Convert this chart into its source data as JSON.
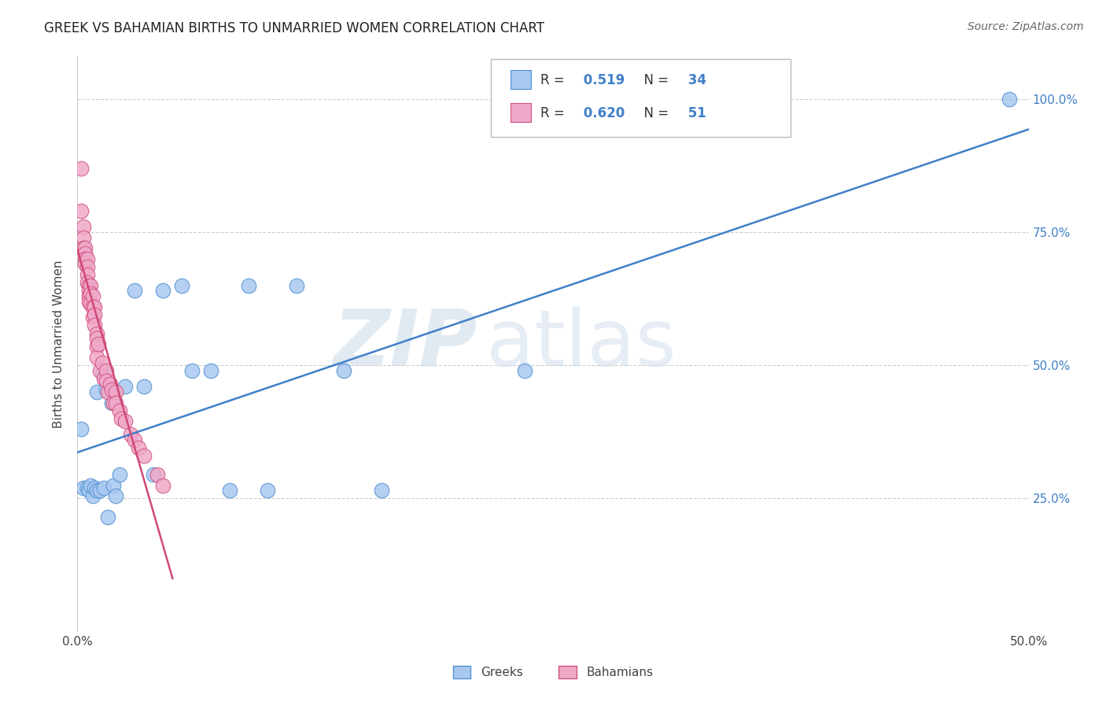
{
  "title": "GREEK VS BAHAMIAN BIRTHS TO UNMARRIED WOMEN CORRELATION CHART",
  "source": "Source: ZipAtlas.com",
  "ylabel": "Births to Unmarried Women",
  "xlim": [
    0.0,
    0.5
  ],
  "ylim": [
    0.0,
    1.08
  ],
  "ytick_positions": [
    0.25,
    0.5,
    0.75,
    1.0
  ],
  "yticklabels": [
    "25.0%",
    "50.0%",
    "75.0%",
    "100.0%"
  ],
  "greek_R": "0.519",
  "greek_N": "34",
  "bahamian_R": "0.620",
  "bahamian_N": "51",
  "greek_color": "#a8c8f0",
  "bahamian_color": "#f0a8c8",
  "greek_edge_color": "#5090d0",
  "bahamian_edge_color": "#d05080",
  "greek_line_color": "#4080c8",
  "bahamian_line_color": "#d04878",
  "legend_greek_label": "Greeks",
  "legend_bahamian_label": "Bahamians",
  "watermark_zip": "ZIP",
  "watermark_atlas": "atlas",
  "watermark_color": "#d8e8f8",
  "accent_color": "#4080c8",
  "greek_x": [
    0.002,
    0.003,
    0.005,
    0.006,
    0.007,
    0.008,
    0.009,
    0.01,
    0.01,
    0.012,
    0.013,
    0.014,
    0.015,
    0.016,
    0.018,
    0.019,
    0.02,
    0.022,
    0.025,
    0.03,
    0.035,
    0.04,
    0.045,
    0.055,
    0.06,
    0.07,
    0.08,
    0.09,
    0.1,
    0.115,
    0.14,
    0.16,
    0.235,
    0.49
  ],
  "greek_y": [
    0.38,
    0.27,
    0.27,
    0.265,
    0.275,
    0.255,
    0.27,
    0.265,
    0.45,
    0.265,
    0.485,
    0.27,
    0.455,
    0.215,
    0.43,
    0.275,
    0.255,
    0.295,
    0.46,
    0.64,
    0.46,
    0.295,
    0.64,
    0.65,
    0.49,
    0.49,
    0.265,
    0.65,
    0.265,
    0.65,
    0.49,
    0.265,
    0.49,
    1.0
  ],
  "bahamian_x": [
    0.002,
    0.002,
    0.003,
    0.003,
    0.003,
    0.004,
    0.004,
    0.004,
    0.004,
    0.005,
    0.005,
    0.005,
    0.005,
    0.006,
    0.006,
    0.006,
    0.006,
    0.007,
    0.007,
    0.007,
    0.008,
    0.008,
    0.008,
    0.009,
    0.009,
    0.009,
    0.01,
    0.01,
    0.01,
    0.01,
    0.011,
    0.012,
    0.013,
    0.014,
    0.015,
    0.015,
    0.016,
    0.017,
    0.018,
    0.019,
    0.02,
    0.02,
    0.022,
    0.023,
    0.025,
    0.028,
    0.03,
    0.032,
    0.035,
    0.042,
    0.045
  ],
  "bahamian_y": [
    0.87,
    0.79,
    0.76,
    0.74,
    0.72,
    0.72,
    0.71,
    0.7,
    0.69,
    0.7,
    0.685,
    0.67,
    0.655,
    0.65,
    0.64,
    0.63,
    0.62,
    0.65,
    0.635,
    0.615,
    0.63,
    0.61,
    0.59,
    0.61,
    0.595,
    0.575,
    0.56,
    0.55,
    0.535,
    0.515,
    0.54,
    0.49,
    0.505,
    0.475,
    0.49,
    0.47,
    0.45,
    0.465,
    0.455,
    0.43,
    0.45,
    0.43,
    0.415,
    0.4,
    0.395,
    0.37,
    0.36,
    0.345,
    0.33,
    0.295,
    0.275
  ]
}
